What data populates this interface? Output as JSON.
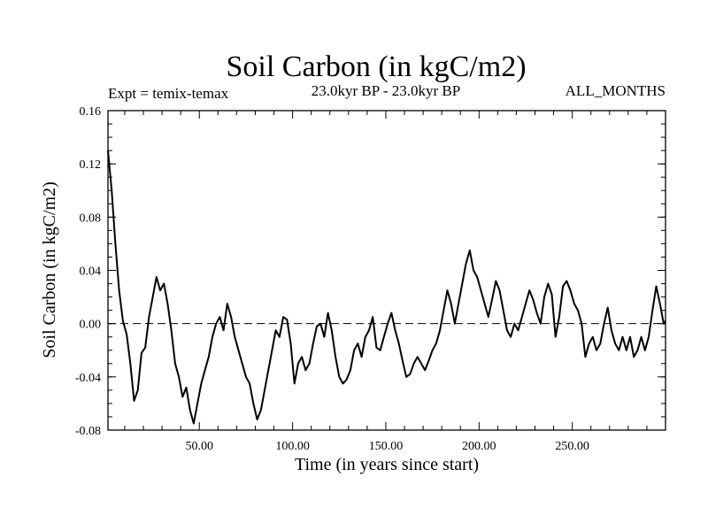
{
  "chart_data": {
    "type": "line",
    "title": "Soil Carbon (in kgC/m2)",
    "subtitle": "23.0kyr BP - 23.0kyr BP",
    "expt_label": "Expt = temix-temax",
    "months_label": "ALL_MONTHS",
    "xlabel": "Time (in years since start)",
    "ylabel": "Soil Carbon (in kgC/m2)",
    "xlim": [
      1,
      300
    ],
    "ylim": [
      -0.08,
      0.16
    ],
    "xticks": [
      50,
      100,
      150,
      200,
      250
    ],
    "xtick_labels": [
      "50.00",
      "100.00",
      "150.00",
      "200.00",
      "250.00"
    ],
    "yticks": [
      -0.08,
      -0.04,
      0.0,
      0.04,
      0.08,
      0.12,
      0.16
    ],
    "ytick_labels": [
      "-0.08",
      "-0.04",
      "0.00",
      "0.04",
      "0.08",
      "0.12",
      "0.16"
    ],
    "reference_line": 0.0,
    "series": [
      {
        "name": "temix-temax",
        "x": [
          1,
          3,
          5,
          7,
          9,
          11,
          13,
          15,
          17,
          19,
          21,
          23,
          25,
          27,
          29,
          31,
          33,
          35,
          37,
          39,
          41,
          43,
          45,
          47,
          49,
          51,
          53,
          55,
          57,
          59,
          61,
          63,
          65,
          67,
          69,
          71,
          73,
          75,
          77,
          79,
          81,
          83,
          85,
          87,
          89,
          91,
          93,
          95,
          97,
          99,
          101,
          103,
          105,
          107,
          109,
          111,
          113,
          115,
          117,
          119,
          121,
          123,
          125,
          127,
          129,
          131,
          133,
          135,
          137,
          139,
          141,
          143,
          145,
          147,
          149,
          151,
          153,
          155,
          157,
          159,
          161,
          163,
          165,
          167,
          169,
          171,
          173,
          175,
          177,
          179,
          181,
          183,
          185,
          187,
          189,
          191,
          193,
          195,
          197,
          199,
          201,
          203,
          205,
          207,
          209,
          211,
          213,
          215,
          217,
          219,
          221,
          223,
          225,
          227,
          229,
          231,
          233,
          235,
          237,
          239,
          241,
          243,
          245,
          247,
          249,
          251,
          253,
          255,
          257,
          259,
          261,
          263,
          265,
          267,
          269,
          271,
          273,
          275,
          277,
          279,
          281,
          283,
          285,
          287,
          289,
          291,
          293,
          295,
          297,
          299,
          300
        ],
        "values": [
          0.13,
          0.1,
          0.06,
          0.025,
          0.002,
          -0.008,
          -0.03,
          -0.058,
          -0.05,
          -0.022,
          -0.018,
          0.005,
          0.02,
          0.035,
          0.025,
          0.03,
          0.015,
          -0.005,
          -0.03,
          -0.04,
          -0.055,
          -0.048,
          -0.065,
          -0.075,
          -0.06,
          -0.045,
          -0.035,
          -0.025,
          -0.01,
          0.0,
          0.005,
          -0.005,
          0.015,
          0.005,
          -0.01,
          -0.02,
          -0.03,
          -0.04,
          -0.045,
          -0.06,
          -0.072,
          -0.065,
          -0.05,
          -0.035,
          -0.02,
          -0.005,
          -0.01,
          0.005,
          0.003,
          -0.015,
          -0.045,
          -0.03,
          -0.025,
          -0.035,
          -0.03,
          -0.015,
          -0.002,
          0.0,
          -0.01,
          0.008,
          -0.005,
          -0.025,
          -0.04,
          -0.045,
          -0.042,
          -0.035,
          -0.02,
          -0.015,
          -0.025,
          -0.01,
          -0.005,
          0.005,
          -0.018,
          -0.02,
          -0.01,
          0.0,
          0.008,
          -0.005,
          -0.015,
          -0.028,
          -0.04,
          -0.038,
          -0.03,
          -0.025,
          -0.03,
          -0.035,
          -0.028,
          -0.02,
          -0.015,
          -0.005,
          0.01,
          0.025,
          0.015,
          0.0,
          0.015,
          0.03,
          0.045,
          0.055,
          0.04,
          0.035,
          0.025,
          0.015,
          0.005,
          0.018,
          0.032,
          0.025,
          0.01,
          -0.005,
          -0.01,
          0.0,
          -0.005,
          0.005,
          0.015,
          0.025,
          0.018,
          0.008,
          0.0,
          0.02,
          0.03,
          0.022,
          -0.01,
          0.005,
          0.028,
          0.032,
          0.025,
          0.015,
          0.01,
          0.0,
          -0.025,
          -0.015,
          -0.01,
          -0.02,
          -0.015,
          0.0,
          0.012,
          -0.005,
          -0.015,
          -0.02,
          -0.01,
          -0.02,
          -0.01,
          -0.025,
          -0.02,
          -0.01,
          -0.02,
          -0.01,
          0.01,
          0.028,
          0.015,
          0.0,
          0.002
        ]
      }
    ]
  }
}
